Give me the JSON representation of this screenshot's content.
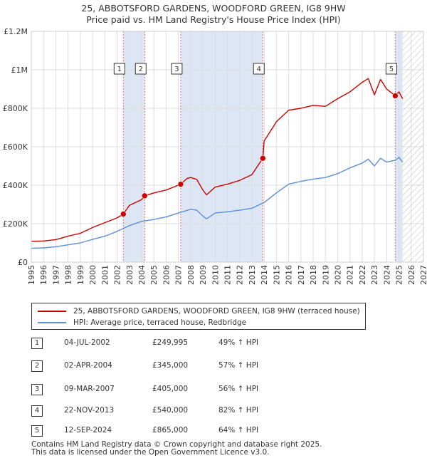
{
  "title_line1": "25, ABBOTSFORD GARDENS, WOODFORD GREEN, IG8 9HW",
  "title_line2": "Price paid vs. HM Land Registry's House Price Index (HPI)",
  "legend": {
    "property_label": "25, ABBOTSFORD GARDENS, WOODFORD GREEN, IG8 9HW (terraced house)",
    "hpi_label": "HPI: Average price, terraced house, Redbridge"
  },
  "colors": {
    "property": "#cc0000",
    "hpi": "#5b8fd6",
    "shade": "#dde6f5",
    "marker_line": "#e07070",
    "grid": "#dddddd"
  },
  "sales": [
    {
      "num": "1",
      "date": "04-JUL-2002",
      "price": "£249,995",
      "hpi_change": "49% ↑ HPI"
    },
    {
      "num": "2",
      "date": "02-APR-2004",
      "price": "£345,000",
      "hpi_change": "57% ↑ HPI"
    },
    {
      "num": "3",
      "date": "09-MAR-2007",
      "price": "£405,000",
      "hpi_change": "56% ↑ HPI"
    },
    {
      "num": "4",
      "date": "22-NOV-2013",
      "price": "£540,000",
      "hpi_change": "82% ↑ HPI"
    },
    {
      "num": "5",
      "date": "12-SEP-2024",
      "price": "£865,000",
      "hpi_change": "64% ↑ HPI"
    }
  ],
  "footer": {
    "line1": "Contains HM Land Registry data © Crown copyright and database right 2025.",
    "line2": "This data is licensed under the Open Government Licence v3.0."
  },
  "chart_data": {
    "type": "line",
    "title": "25, ABBOTSFORD GARDENS, WOODFORD GREEN, IG8 9HW",
    "xlim": [
      1995,
      2027
    ],
    "ylim": [
      0,
      1200000
    ],
    "x_ticks": [
      "1995",
      "1996",
      "1997",
      "1998",
      "1999",
      "2000",
      "2001",
      "2002",
      "2003",
      "2004",
      "2005",
      "2006",
      "2007",
      "2008",
      "2009",
      "2010",
      "2011",
      "2012",
      "2013",
      "2014",
      "2015",
      "2016",
      "2017",
      "2018",
      "2019",
      "2020",
      "2021",
      "2022",
      "2023",
      "2024",
      "2025",
      "2026",
      "2027"
    ],
    "y_ticks": [
      {
        "value": 0,
        "label": "£0"
      },
      {
        "value": 200000,
        "label": "£200K"
      },
      {
        "value": 400000,
        "label": "£400K"
      },
      {
        "value": 600000,
        "label": "£600K"
      },
      {
        "value": 800000,
        "label": "£800K"
      },
      {
        "value": 1000000,
        "label": "£1M"
      },
      {
        "value": 1200000,
        "label": "£1.2M"
      }
    ],
    "shaded_spans": [
      [
        2002.5,
        2004.25
      ],
      [
        2007.2,
        2013.9
      ],
      [
        2024.7,
        2025.3
      ]
    ],
    "hatch_from": 2025.3,
    "sale_points": [
      {
        "label": "1",
        "x": 2002.51,
        "y": 249995
      },
      {
        "label": "2",
        "x": 2004.25,
        "y": 345000
      },
      {
        "label": "3",
        "x": 2007.19,
        "y": 405000
      },
      {
        "label": "4",
        "x": 2013.89,
        "y": 540000
      },
      {
        "label": "5",
        "x": 2024.7,
        "y": 865000
      }
    ],
    "series": [
      {
        "name": "25, ABBOTSFORD GARDENS, WOODFORD GREEN, IG8 9HW (terraced house)",
        "x": [
          1995,
          1996,
          1997,
          1998,
          1999,
          2000,
          2001,
          2002,
          2002.51,
          2003,
          2004,
          2004.25,
          2005,
          2006,
          2007,
          2007.19,
          2007.7,
          2008,
          2008.5,
          2009,
          2009.3,
          2010,
          2011,
          2012,
          2013,
          2013.89,
          2014,
          2015,
          2016,
          2017,
          2018,
          2019,
          2020,
          2021,
          2022,
          2022.5,
          2023,
          2023.5,
          2024,
          2024.7,
          2025,
          2025.3
        ],
        "values": [
          108000,
          110000,
          117000,
          135000,
          150000,
          180000,
          205000,
          230000,
          249995,
          295000,
          325000,
          345000,
          360000,
          375000,
          400000,
          405000,
          435000,
          440000,
          430000,
          375000,
          350000,
          390000,
          405000,
          425000,
          455000,
          540000,
          630000,
          730000,
          790000,
          800000,
          815000,
          810000,
          850000,
          885000,
          935000,
          955000,
          870000,
          950000,
          900000,
          865000,
          885000,
          850000
        ]
      },
      {
        "name": "HPI: Average price, terraced house, Redbridge",
        "x": [
          1995,
          1996,
          1997,
          1998,
          1999,
          2000,
          2001,
          2002,
          2003,
          2004,
          2005,
          2006,
          2007,
          2008,
          2008.5,
          2009,
          2009.3,
          2010,
          2011,
          2012,
          2013,
          2014,
          2015,
          2016,
          2017,
          2018,
          2019,
          2020,
          2021,
          2022,
          2022.5,
          2023,
          2023.5,
          2024,
          2024.7,
          2025,
          2025.3
        ],
        "values": [
          72000,
          74000,
          80000,
          90000,
          100000,
          118000,
          135000,
          160000,
          190000,
          212000,
          222000,
          235000,
          255000,
          275000,
          270000,
          240000,
          225000,
          255000,
          262000,
          270000,
          280000,
          310000,
          360000,
          405000,
          420000,
          432000,
          440000,
          460000,
          490000,
          515000,
          535000,
          500000,
          540000,
          520000,
          530000,
          545000,
          520000
        ]
      }
    ]
  }
}
